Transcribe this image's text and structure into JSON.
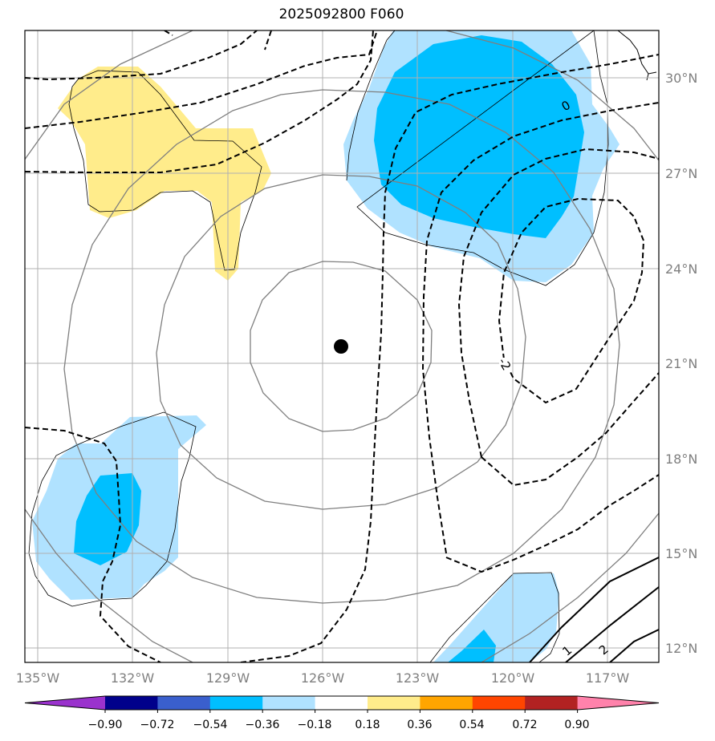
{
  "title": "2025092800 F060",
  "map": {
    "lon_ticks": [
      "135°W",
      "132°W",
      "129°W",
      "126°W",
      "123°W",
      "120°W",
      "117°W"
    ],
    "lat_ticks": [
      "30°N",
      "27°N",
      "24°N",
      "21°N",
      "18°N",
      "15°N",
      "12°N"
    ],
    "center_marker": {
      "lon": -125.5,
      "lat": 21.5
    },
    "contour_labels": [
      "0",
      "-2",
      "1",
      "2"
    ]
  },
  "colorbar": {
    "ticks": [
      "−0.90",
      "−0.72",
      "−0.54",
      "−0.36",
      "−0.18",
      "0.18",
      "0.36",
      "0.54",
      "0.72",
      "0.90"
    ],
    "colors": [
      "#9a32cd",
      "#00008b",
      "#3a5fcd",
      "#00bfff",
      "#b0e2ff",
      "#ffffff",
      "#ffec8b",
      "#ffa500",
      "#ff4500",
      "#b22222",
      "#ff82ab"
    ]
  }
}
